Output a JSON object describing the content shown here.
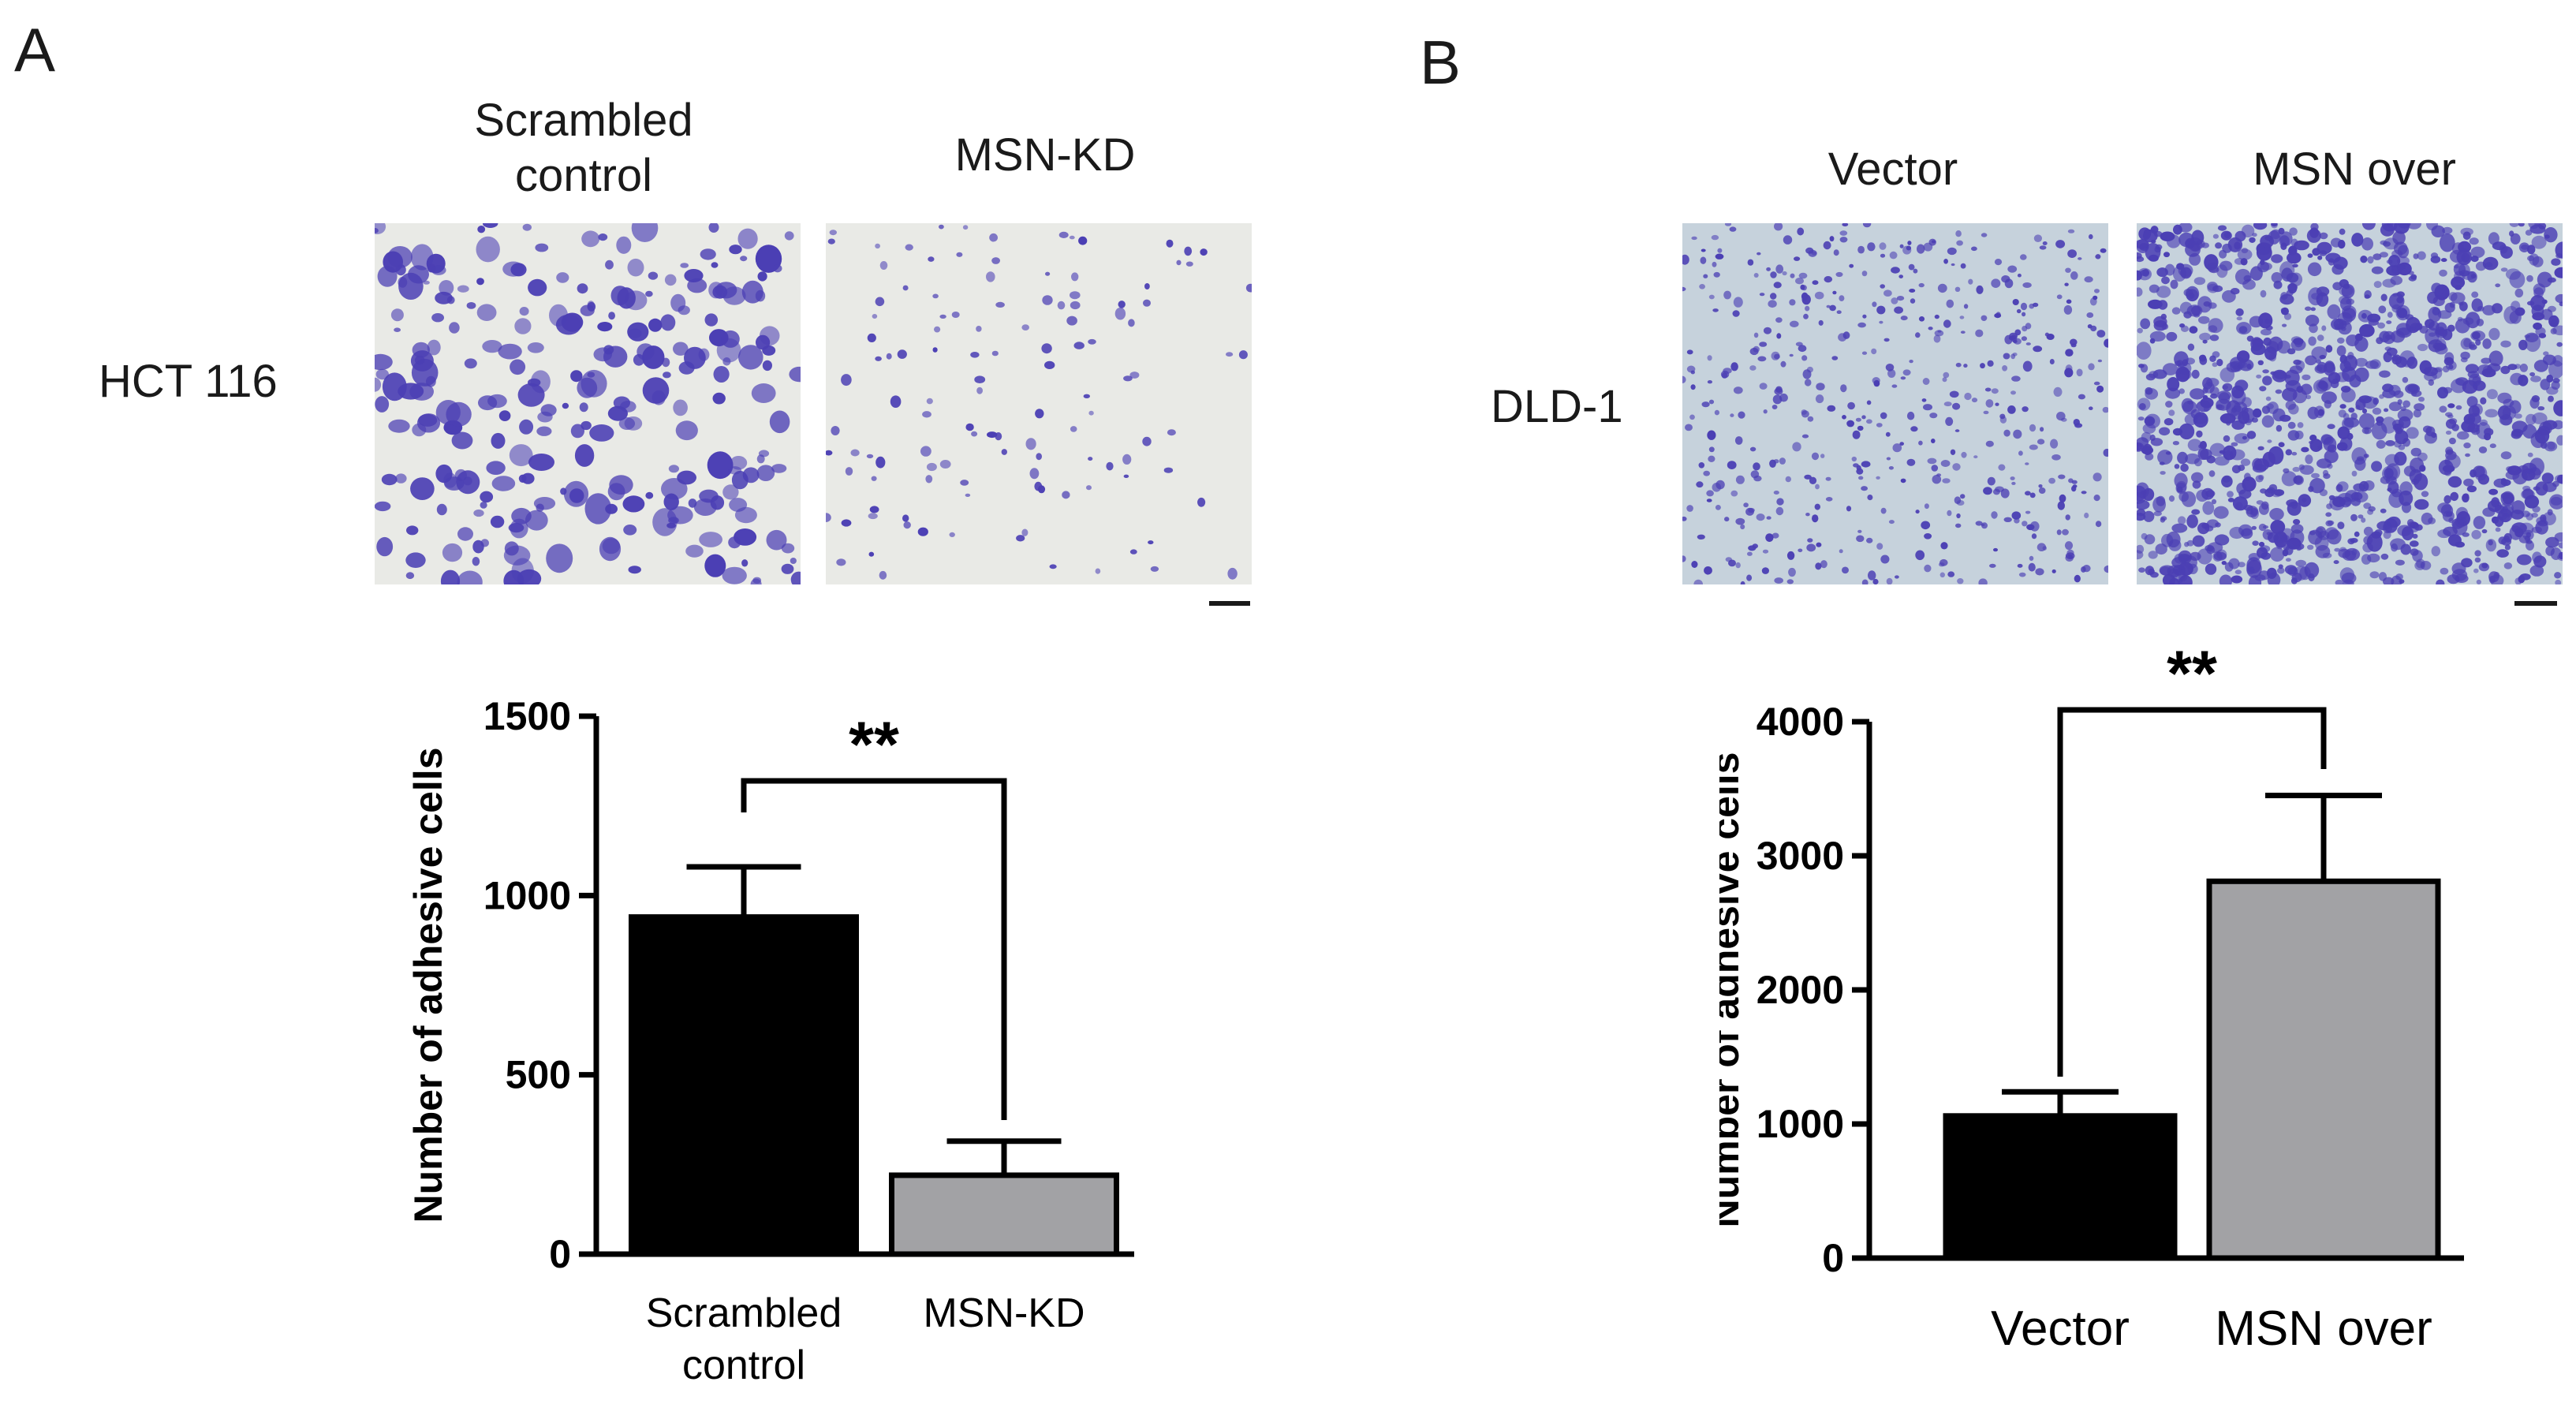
{
  "panel_a": {
    "letter": "A",
    "column_labels": [
      "Scrambled\ncontrol",
      "MSN-KD"
    ],
    "row_label": "HCT 116"
  },
  "panel_b": {
    "letter": "B",
    "column_labels": [
      "Vector",
      "MSN over"
    ],
    "row_label": "DLD-1"
  },
  "colors": {
    "bar_black": "#000000",
    "bar_gray": "#a2a2a5",
    "micro_bg_a": "#e9eae6",
    "micro_bg_b": "#c6d2dc",
    "stain": "#4b3fb4"
  },
  "chart_data": [
    {
      "type": "bar",
      "panel": "A",
      "categories": [
        "Scrambled\ncontrol",
        "MSN-KD"
      ],
      "values": [
        940,
        220
      ],
      "errors": [
        140,
        95
      ],
      "ylabel": "Number of adhesive cells",
      "ylim": [
        0,
        1500
      ],
      "yticks": [
        "0",
        "500",
        "1000",
        "1500"
      ],
      "significance": "**"
    },
    {
      "type": "bar",
      "panel": "B",
      "categories": [
        "Vector",
        "MSN over"
      ],
      "values": [
        1060,
        2810
      ],
      "errors": [
        180,
        640
      ],
      "ylabel": "Number of adhesive cells",
      "ylim": [
        0,
        4000
      ],
      "yticks": [
        "0",
        "1000",
        "2000",
        "3000",
        "4000"
      ],
      "significance": "**"
    }
  ]
}
